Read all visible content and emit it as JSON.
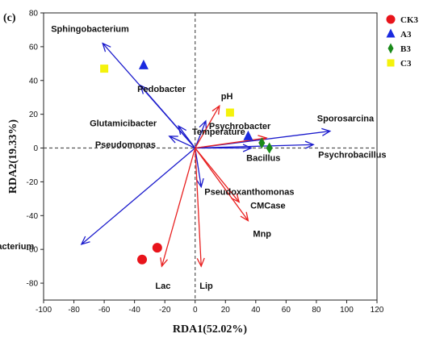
{
  "panel_label": "(c)",
  "chart_data": {
    "type": "scatter",
    "title": "",
    "xlabel": "RDA1(52.02%)",
    "ylabel": "RDA2(19.33%)",
    "xlim": [
      -100,
      120
    ],
    "ylim": [
      -90,
      80
    ],
    "xticks": [
      -100,
      -80,
      -60,
      -40,
      -20,
      0,
      20,
      40,
      60,
      80,
      100,
      120
    ],
    "yticks": [
      -80,
      -60,
      -40,
      -20,
      0,
      20,
      40,
      60,
      80
    ],
    "grid": false,
    "legend_position": "top-right",
    "colors": {
      "species_arrow": "#1a1acc",
      "env_arrow": "#e82020",
      "zero_line": "#555555"
    },
    "series": [
      {
        "name": "CK3",
        "shape": "circle",
        "color": "#e8141b",
        "points": [
          [
            -35,
            -66
          ],
          [
            -25,
            -59
          ]
        ]
      },
      {
        "name": "A3",
        "shape": "triangle",
        "color": "#1a2adf",
        "points": [
          [
            -34,
            49
          ],
          [
            35,
            7
          ]
        ]
      },
      {
        "name": "B3",
        "shape": "diamond",
        "color": "#1a8a1a",
        "points": [
          [
            44,
            3
          ],
          [
            49,
            0
          ]
        ]
      },
      {
        "name": "C3",
        "shape": "square",
        "color": "#f4f20c",
        "points": [
          [
            -60,
            47
          ],
          [
            23,
            21
          ]
        ]
      }
    ],
    "species_arrows": [
      {
        "label": "Sphingobacterium",
        "x": -61,
        "y": 62
      },
      {
        "label": "Pedobacter",
        "x": -36,
        "y": 37
      },
      {
        "label": "Glutamicibacter",
        "x": -11,
        "y": 13
      },
      {
        "label": "Pseudomonas",
        "x": -17,
        "y": 7
      },
      {
        "label": "Psychrobacter",
        "x": 7,
        "y": 16
      },
      {
        "label": "Sporosarcina",
        "x": 89,
        "y": 10
      },
      {
        "label": "Bacillus",
        "x": 37,
        "y": 0
      },
      {
        "label": "Psychrobacillus",
        "x": 78,
        "y": 2
      },
      {
        "label": "Pseudoxanthomonas",
        "x": 4,
        "y": -23
      },
      {
        "label": "Flavobacterium",
        "x": -75,
        "y": -57
      }
    ],
    "env_arrows": [
      {
        "label": "pH",
        "x": 16,
        "y": 25
      },
      {
        "label": "Temperature",
        "x": 47,
        "y": 6
      },
      {
        "label": "CMCase",
        "x": 29,
        "y": -32
      },
      {
        "label": "Mnp",
        "x": 35,
        "y": -43
      },
      {
        "label": "Lac",
        "x": -22,
        "y": -70
      },
      {
        "label": "Lip",
        "x": 4,
        "y": -70
      }
    ]
  }
}
